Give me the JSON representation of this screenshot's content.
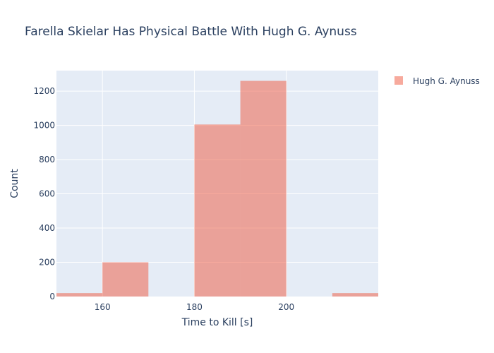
{
  "chart_data": {
    "type": "bar",
    "title": "Farella Skielar Has Physical Battle With Hugh G. Aynuss",
    "xlabel": "Time to Kill [s]",
    "ylabel": "Count",
    "xlim": [
      150,
      220
    ],
    "ylim": [
      0,
      1320
    ],
    "xticks": [
      160,
      180,
      200
    ],
    "yticks": [
      0,
      200,
      400,
      600,
      800,
      1000,
      1200
    ],
    "grid": true,
    "legend_position": "top-right",
    "series": [
      {
        "name": "Hugh G. Aynuss",
        "color": "#ef553b",
        "opacity": 0.5,
        "bins": [
          {
            "x0": 150,
            "x1": 160,
            "count": 20
          },
          {
            "x0": 160,
            "x1": 170,
            "count": 200
          },
          {
            "x0": 170,
            "x1": 180,
            "count": 0
          },
          {
            "x0": 180,
            "x1": 190,
            "count": 1005
          },
          {
            "x0": 190,
            "x1": 200,
            "count": 1260
          },
          {
            "x0": 200,
            "x1": 210,
            "count": 0
          },
          {
            "x0": 210,
            "x1": 220,
            "count": 20
          }
        ]
      }
    ]
  },
  "colors": {
    "plot_background": "#e5ecf6",
    "gridline": "#ffffff",
    "text": "#2a3f5f",
    "bar": "#ef553b"
  }
}
